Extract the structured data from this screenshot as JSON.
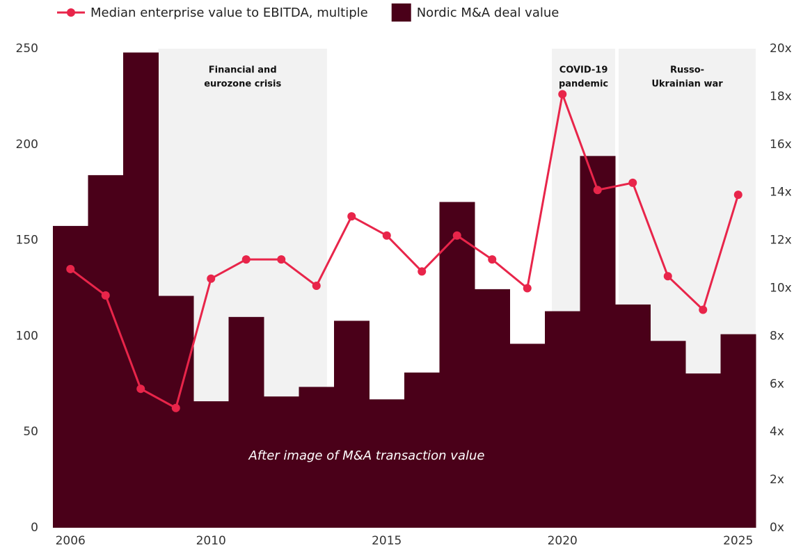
{
  "chart_data": {
    "type": "bar-line",
    "x": [
      2006,
      2007,
      2008,
      2009,
      2010,
      2011,
      2012,
      2013,
      2014,
      2015,
      2016,
      2017,
      2018,
      2019,
      2020,
      2021,
      2022,
      2023,
      2024,
      2025
    ],
    "xlim": [
      2005.5,
      2025.5
    ],
    "xticks": [
      2006,
      2010,
      2015,
      2020,
      2025
    ],
    "ylim": [
      0,
      250
    ],
    "yticks": [
      0,
      50,
      100,
      150,
      200,
      250
    ],
    "y2lim": [
      0,
      20
    ],
    "y2ticks": [
      {
        "value": 0,
        "label": "0x"
      },
      {
        "value": 2,
        "label": "2x"
      },
      {
        "value": 4,
        "label": "4x"
      },
      {
        "value": 6,
        "label": "6x"
      },
      {
        "value": 8,
        "label": "8x"
      },
      {
        "value": 10,
        "label": "10x"
      },
      {
        "value": 12,
        "label": "12x"
      },
      {
        "value": 14,
        "label": "14x"
      },
      {
        "value": 16,
        "label": "16x"
      },
      {
        "value": 18,
        "label": "18x"
      },
      {
        "value": 20,
        "label": "20x"
      }
    ],
    "series": [
      {
        "name": "Median enterprise value to EBITDA, multiple",
        "type": "line",
        "axis": "y2",
        "color": "#e8254a",
        "values": [
          10.8,
          9.7,
          5.8,
          5.0,
          10.4,
          11.2,
          11.2,
          10.1,
          13.0,
          12.2,
          10.7,
          12.2,
          11.2,
          10.0,
          18.1,
          14.1,
          14.4,
          10.5,
          9.1,
          13.9
        ]
      },
      {
        "name": "Nordic M&A deal value",
        "type": "bar",
        "color": "#4a0019",
        "values": [
          157.5,
          184,
          248,
          121,
          66,
          110,
          68.5,
          73.5,
          108,
          67,
          81,
          170,
          124.5,
          96,
          113,
          194,
          116.5,
          97.5,
          80.5,
          101
        ]
      }
    ],
    "shaded_regions": [
      {
        "label": [
          "Financial and",
          "eurozone crisis"
        ],
        "start": 2008.5,
        "end": 2013.3
      },
      {
        "label": [
          "COVID-19",
          "pandemic"
        ],
        "start": 2019.7,
        "end": 2021.5
      },
      {
        "label": [
          "Russo-",
          "Ukrainian war"
        ],
        "start": 2021.6,
        "end": 2025.5
      }
    ],
    "annotation": "After image of M&A transaction value"
  }
}
